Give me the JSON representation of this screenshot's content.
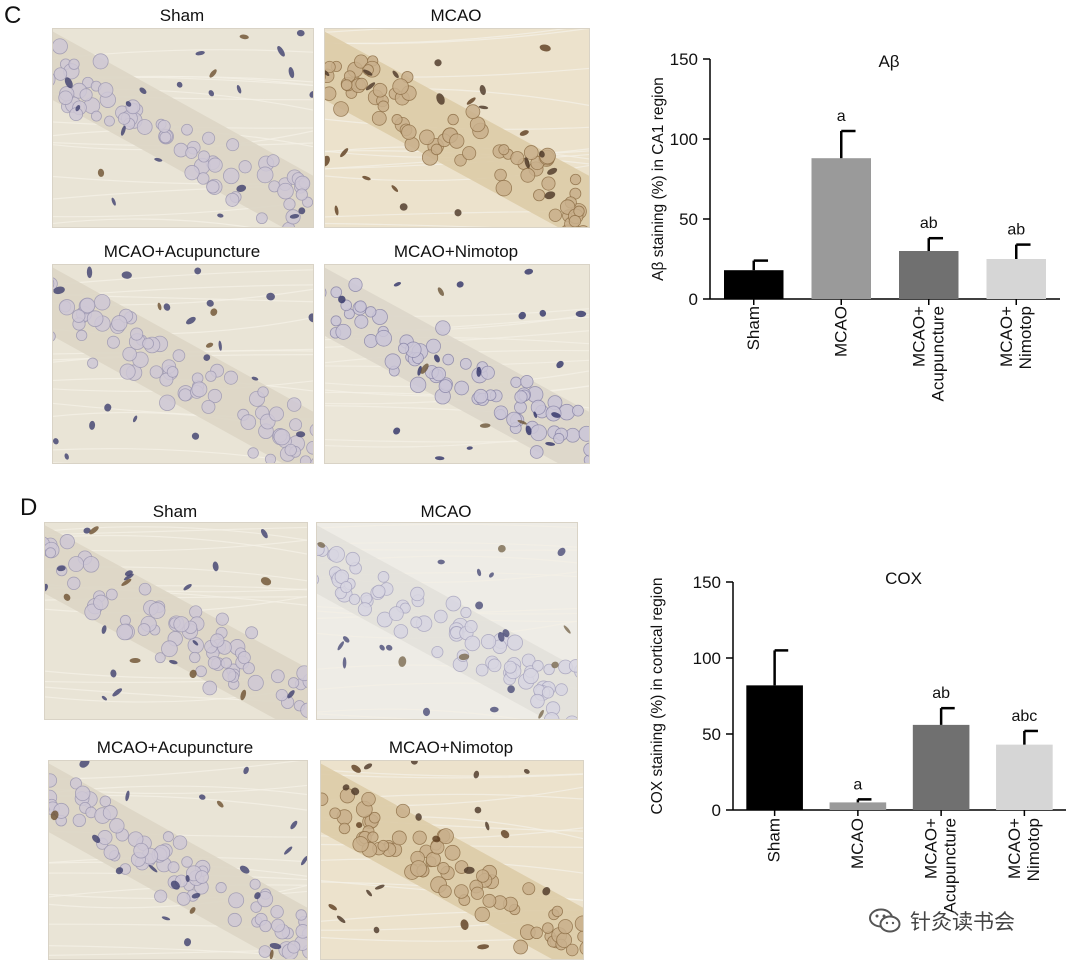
{
  "panels": {
    "c": {
      "letter": "C",
      "images": [
        {
          "label": "Sham",
          "tone": "light"
        },
        {
          "label": "MCAO",
          "tone": "brown"
        },
        {
          "label": "MCAO+Acupuncture",
          "tone": "light"
        },
        {
          "label": "MCAO+Nimotop",
          "tone": "blue"
        }
      ]
    },
    "d": {
      "letter": "D",
      "images": [
        {
          "label": "Sham",
          "tone": "light"
        },
        {
          "label": "MCAO",
          "tone": "pale"
        },
        {
          "label": "MCAO+Acupuncture",
          "tone": "light"
        },
        {
          "label": "MCAO+Nimotop",
          "tone": "brown"
        }
      ]
    }
  },
  "chart_data": [
    {
      "type": "bar",
      "title": "Aβ",
      "ylabel": "Aβ staining (%) in CA1 region",
      "categories": [
        "Sham",
        "MCAO",
        "MCAO+\nAcupuncture",
        "MCAO+\nNimotop"
      ],
      "values": [
        18,
        88,
        30,
        25
      ],
      "errors": [
        6,
        17,
        8,
        9
      ],
      "annotations": [
        "",
        "a",
        "ab",
        "ab"
      ],
      "colors": [
        "#000000",
        "#9a9a9a",
        "#707070",
        "#d6d6d6"
      ],
      "ylim": [
        0,
        150
      ],
      "yticks": [
        0,
        50,
        100,
        150
      ]
    },
    {
      "type": "bar",
      "title": "COX",
      "ylabel": "COX staining (%) in cortical region",
      "categories": [
        "Sham",
        "MCAO",
        "MCAO+\nAcupuncture",
        "MCAO+\nNimotop"
      ],
      "values": [
        82,
        5,
        56,
        43
      ],
      "errors": [
        23,
        2,
        11,
        9
      ],
      "annotations": [
        "",
        "a",
        "ab",
        "abc"
      ],
      "colors": [
        "#000000",
        "#9a9a9a",
        "#707070",
        "#d6d6d6"
      ],
      "ylim": [
        0,
        150
      ],
      "yticks": [
        0,
        50,
        100,
        150
      ]
    }
  ],
  "watermark": {
    "text": "针灸读书会",
    "icon": "wechat-icon"
  }
}
